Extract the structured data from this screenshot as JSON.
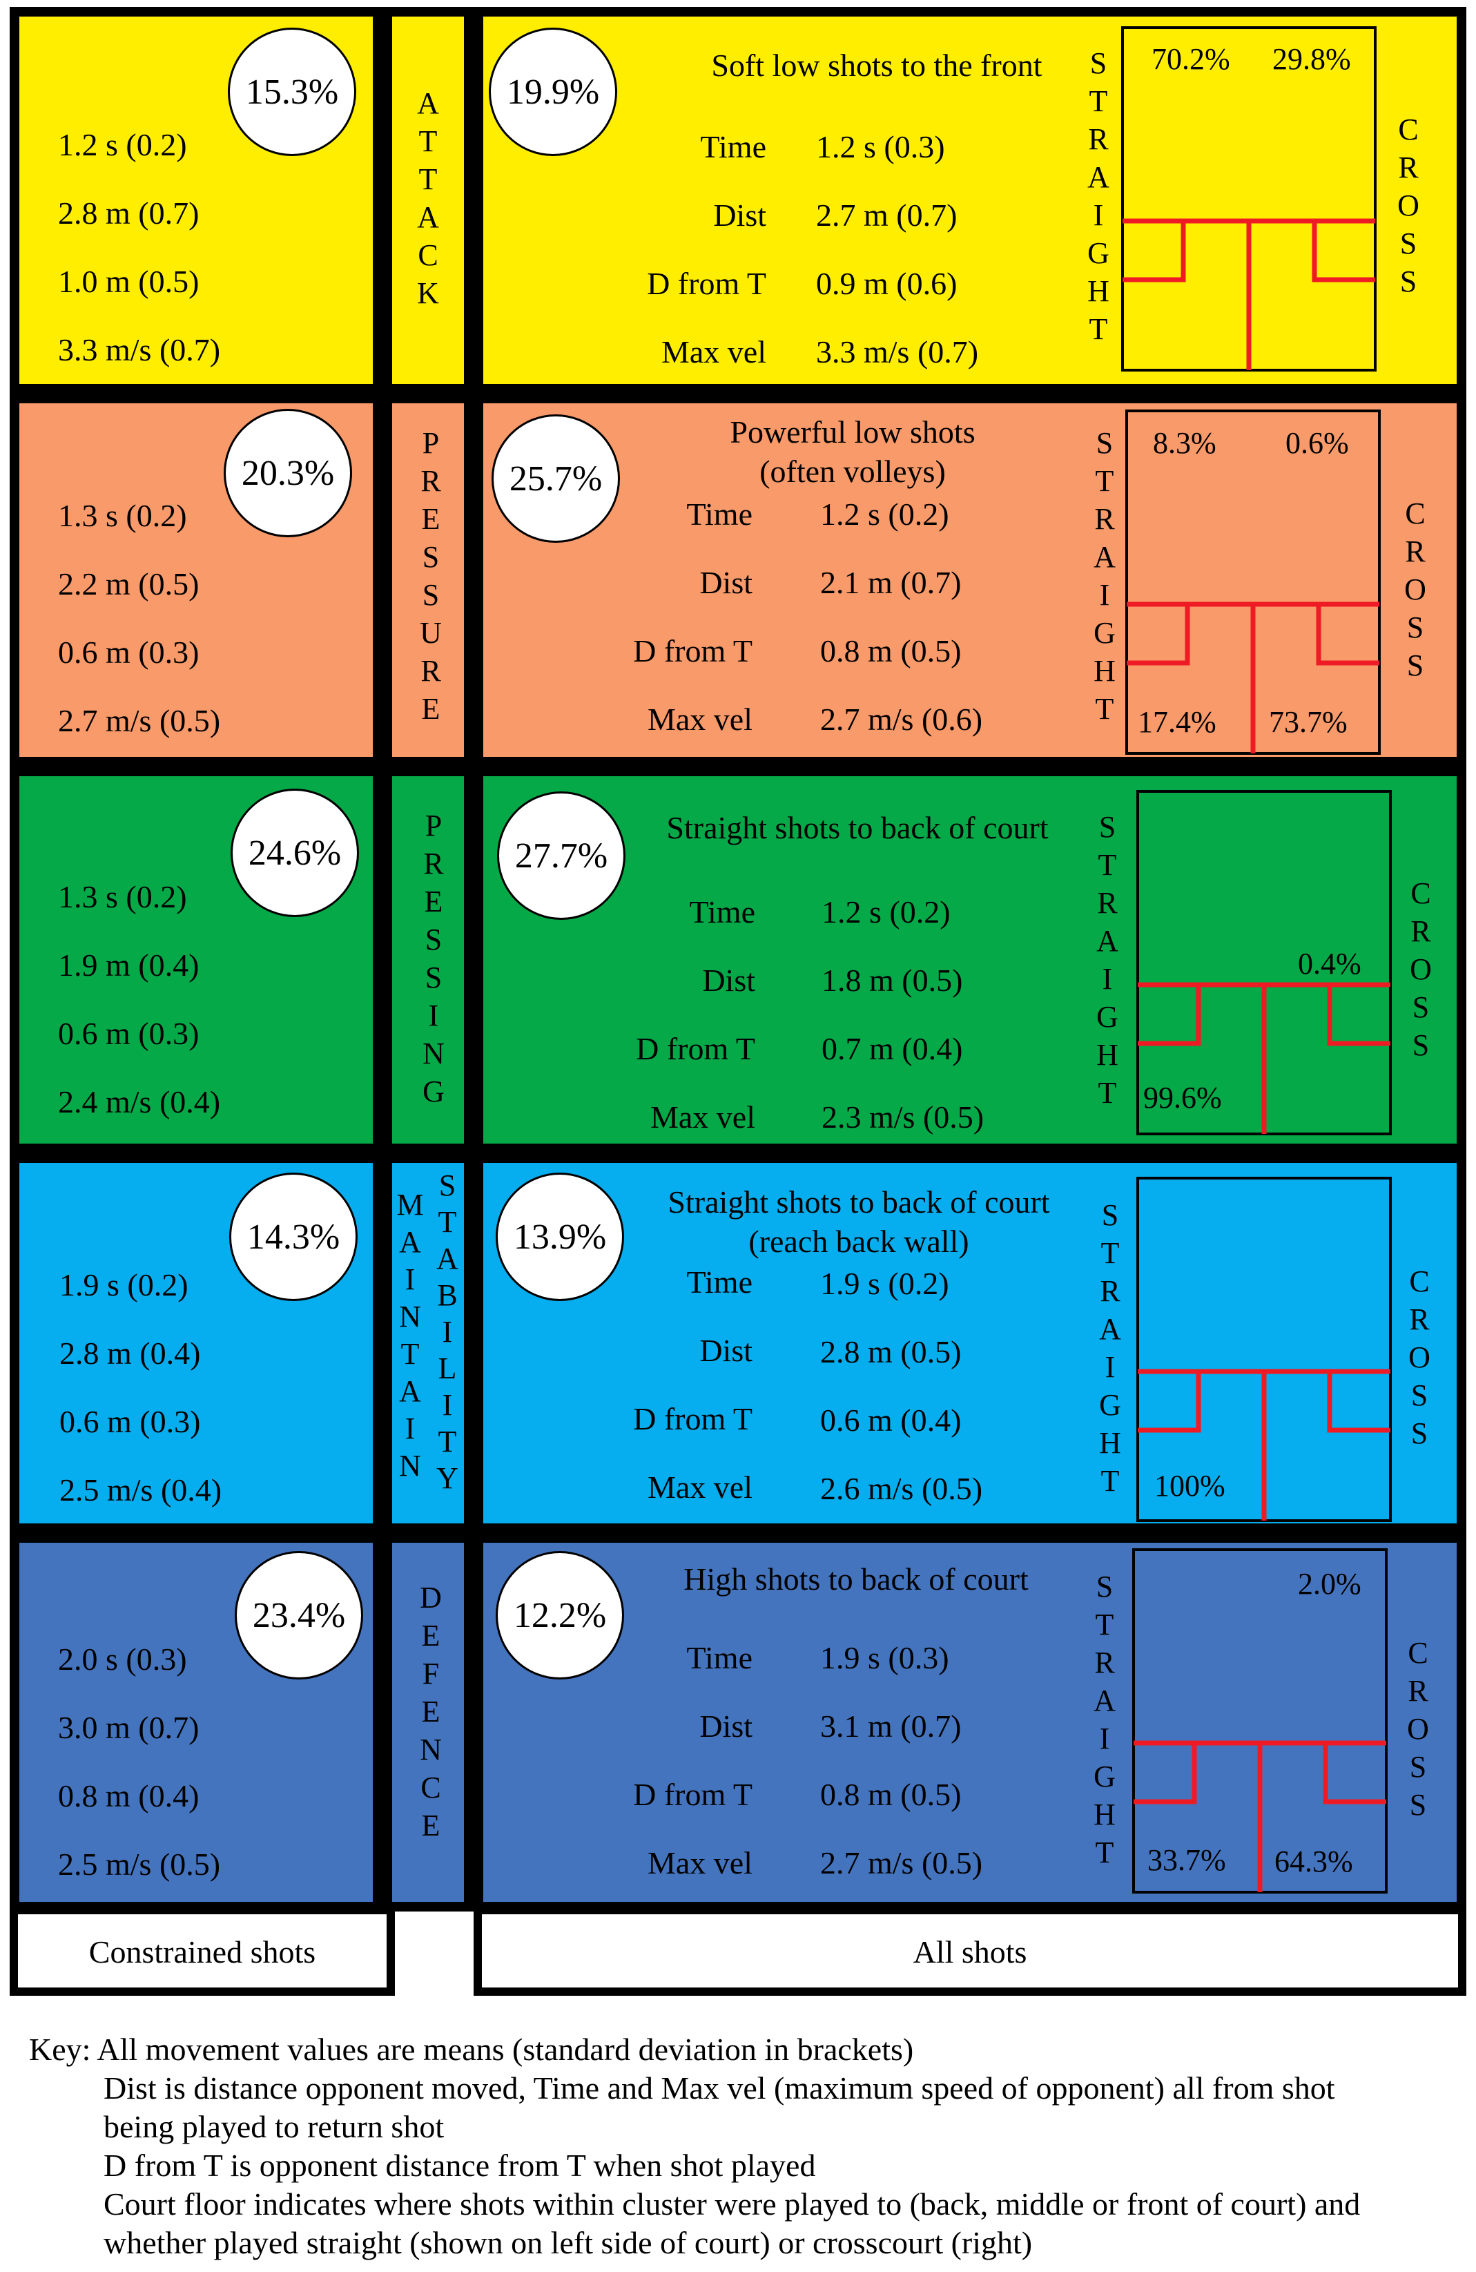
{
  "colors": {
    "attack": "#ffee00",
    "pressure": "#f99a6a",
    "pressing": "#06a948",
    "maintain": "#07aeef",
    "defence": "#4574be",
    "court_line": "#ee1b24"
  },
  "rows": [
    {
      "id": "attack",
      "constrained_pct": "15.3%",
      "constrained_stats": [
        "1.2 s (0.2)",
        "2.8 m (0.7)",
        "1.0 m  (0.5)",
        "3.3 m/s (0.7)"
      ],
      "category_label": "A\nT\nT\nA\nC\nK",
      "all_pct": "19.9%",
      "title_line1": "Soft low shots to the front",
      "title_line2": "",
      "labels": [
        "Time",
        "Dist",
        "D from T",
        "Max vel"
      ],
      "values": [
        "1.2 s (0.3)",
        "2.7 m (0.7)",
        "0.9 m  (0.6)",
        "3.3 m/s (0.7)"
      ],
      "court": {
        "back_straight": "70.2%",
        "back_cross": "29.8%",
        "front_straight": "",
        "front_cross": ""
      }
    },
    {
      "id": "pressure",
      "constrained_pct": "20.3%",
      "constrained_stats": [
        "1.3 s (0.2)",
        "2.2 m (0.5)",
        "0.6 m  (0.3)",
        "2.7 m/s (0.5)"
      ],
      "category_label": "P\nR\nE\nS\nS\nU\nR\nE",
      "all_pct": "25.7%",
      "title_line1": "Powerful low shots",
      "title_line2": "(often volleys)",
      "labels": [
        "Time",
        "Dist",
        "D from T",
        "Max vel"
      ],
      "values": [
        "1.2 s (0.2)",
        "2.1 m (0.7)",
        "0.8 m  (0.5)",
        "2.7 m/s (0.6)"
      ],
      "court": {
        "back_straight": "8.3%",
        "back_cross": "0.6%",
        "front_straight": "17.4%",
        "front_cross": "73.7%"
      }
    },
    {
      "id": "pressing",
      "constrained_pct": "24.6%",
      "constrained_stats": [
        "1.3 s (0.2)",
        "1.9 m (0.4)",
        "0.6 m  (0.3)",
        "2.4 m/s (0.4)"
      ],
      "category_label": "P\nR\nE\nS\nS\nI\nN\nG",
      "all_pct": "27.7%",
      "title_line1": "Straight shots to back of court",
      "title_line2": "",
      "labels": [
        "Time",
        "Dist",
        "D from T",
        "Max vel"
      ],
      "values": [
        "1.2 s (0.2)",
        "1.8 m (0.5)",
        "0.7 m  (0.4)",
        "2.3 m/s (0.5)"
      ],
      "court": {
        "back_straight": "",
        "back_cross": "",
        "mid_cross": "0.4%",
        "front_straight": "99.6%",
        "front_cross": ""
      }
    },
    {
      "id": "maintain",
      "constrained_pct": "14.3%",
      "constrained_stats": [
        "1.9 s (0.2)",
        "2.8 m (0.4)",
        "0.6 m  (0.3)",
        "2.5 m/s (0.4)"
      ],
      "category_label": "M\nA\nI\nN\nT\nA\nI\nN",
      "category_label2": "S\nT\nA\nB\nI\nL\nI\nT\nY",
      "all_pct": "13.9%",
      "title_line1": "Straight shots to back of court",
      "title_line2": "(reach back wall)",
      "labels": [
        "Time",
        "Dist",
        "D from T",
        "Max vel"
      ],
      "values": [
        "1.9 s (0.2)",
        "2.8 m (0.5)",
        "0.6 m  (0.4)",
        "2.6 m/s (0.5)"
      ],
      "court": {
        "back_straight": "",
        "back_cross": "",
        "front_straight": "100%",
        "front_cross": ""
      }
    },
    {
      "id": "defence",
      "constrained_pct": "23.4%",
      "constrained_stats": [
        "2.0 s (0.3)",
        "3.0 m (0.7)",
        "0.8 m  (0.4)",
        "2.5 m/s (0.5)"
      ],
      "category_label": "D\nE\nF\nE\nN\nC\nE",
      "all_pct": "12.2%",
      "title_line1": "High shots to back of court",
      "title_line2": "",
      "labels": [
        "Time",
        "Dist",
        "D from T",
        "Max vel"
      ],
      "values": [
        "1.9 s (0.3)",
        "3.1 m (0.7)",
        "0.8 m  (0.5)",
        "2.7 m/s (0.5)"
      ],
      "court": {
        "back_straight": "",
        "back_cross": "2.0%",
        "front_straight": "33.7%",
        "front_cross": "64.3%"
      }
    }
  ],
  "straight_label": "S\nT\nR\nA\nI\nG\nH\nT",
  "cross_label": "C\nR\nO\nS\nS",
  "footer": {
    "constrained": "Constrained shots",
    "all": "All shots"
  },
  "key": [
    "Key: All movement values are means (standard deviation in brackets)",
    "Dist is distance opponent moved, Time and Max vel (maximum speed of opponent) all from shot",
    "being played to return shot",
    "D from T is opponent distance from T when shot played",
    "Court floor indicates where shots within cluster were played to (back, middle or front of court) and",
    "whether played straight (shown on left side of court) or crosscourt (right)"
  ]
}
